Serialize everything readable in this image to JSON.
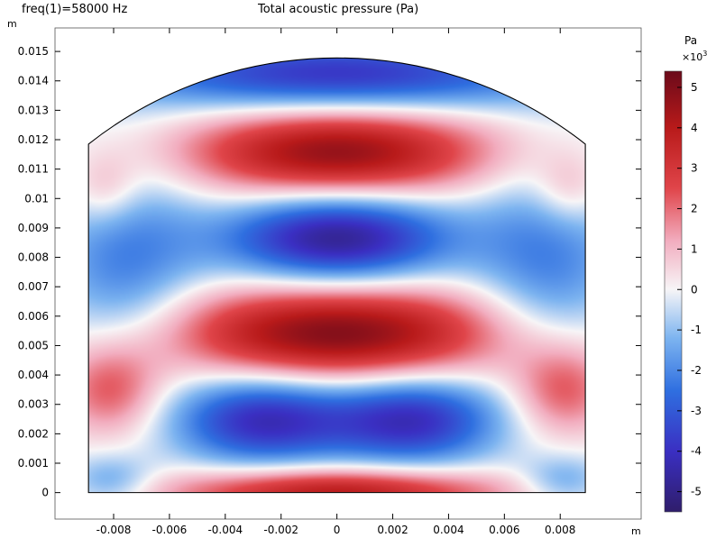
{
  "header": {
    "parameter_label": "freq(1)=58000 Hz",
    "plot_title": "Total acoustic pressure (Pa)"
  },
  "chart_data": {
    "type": "heatmap",
    "title": "Total acoustic pressure (Pa)",
    "subtitle": "freq(1)=58000 Hz",
    "xlabel": "m",
    "ylabel": "m",
    "xlim": [
      -0.0101,
      0.0109
    ],
    "ylim": [
      -0.0009,
      0.0158
    ],
    "x_ticks": [
      -0.008,
      -0.006,
      -0.004,
      -0.002,
      0,
      0.002,
      0.004,
      0.006,
      0.008
    ],
    "x_tick_labels": [
      "-0.008",
      "-0.006",
      "-0.004",
      "-0.002",
      "0",
      "0.002",
      "0.004",
      "0.006",
      "0.008"
    ],
    "y_ticks": [
      0,
      0.001,
      0.002,
      0.003,
      0.004,
      0.005,
      0.006,
      0.007,
      0.008,
      0.009,
      0.01,
      0.011,
      0.012,
      0.013,
      0.014,
      0.015
    ],
    "y_tick_labels": [
      "0",
      "0.001",
      "0.002",
      "0.003",
      "0.004",
      "0.005",
      "0.006",
      "0.007",
      "0.008",
      "0.009",
      "0.01",
      "0.011",
      "0.012",
      "0.013",
      "0.014",
      "0.015"
    ],
    "domain": {
      "x_range": [
        -0.0089,
        0.0089
      ],
      "side_height": 0.01185,
      "apex_height": 0.01478
    },
    "pressure_features": [
      {
        "label": "lobe",
        "x": 0,
        "y": 0.01155,
        "value": 4800,
        "sx": 0.0039,
        "sy": 0.0011
      },
      {
        "label": "lobe",
        "x": 0,
        "y": 0.00865,
        "value": -5000,
        "sx": 0.0029,
        "sy": 0.0011
      },
      {
        "label": "lobe",
        "x": 0,
        "y": 0.0054,
        "value": 5100,
        "sx": 0.0044,
        "sy": 0.0012
      },
      {
        "label": "lobe",
        "x": -0.0027,
        "y": 0.0025,
        "value": -4200,
        "sx": 0.0022,
        "sy": 0.0011
      },
      {
        "label": "lobe",
        "x": 0.0027,
        "y": 0.0025,
        "value": -4200,
        "sx": 0.0022,
        "sy": 0.0011
      },
      {
        "label": "lobe",
        "x": 0,
        "y": 0.0,
        "value": 4200,
        "sx": 0.0042,
        "sy": 0.0006
      },
      {
        "label": "lobe",
        "x": 0,
        "y": 0.0142,
        "value": -4000,
        "sx": 0.0058,
        "sy": 0.0009
      },
      {
        "label": "lobe",
        "x": -0.0076,
        "y": 0.0078,
        "value": -2200,
        "sx": 0.0019,
        "sy": 0.0024
      },
      {
        "label": "lobe",
        "x": 0.0076,
        "y": 0.0078,
        "value": -2200,
        "sx": 0.0019,
        "sy": 0.0024
      },
      {
        "label": "lobe",
        "x": -0.0081,
        "y": 0.0035,
        "value": 2500,
        "sx": 0.0013,
        "sy": 0.0011
      },
      {
        "label": "lobe",
        "x": 0.0081,
        "y": 0.0035,
        "value": 2500,
        "sx": 0.0013,
        "sy": 0.0011
      },
      {
        "label": "lobe",
        "x": -0.0083,
        "y": 0.0103,
        "value": 1400,
        "sx": 0.0009,
        "sy": 0.0009
      },
      {
        "label": "lobe",
        "x": 0.0083,
        "y": 0.0103,
        "value": 1400,
        "sx": 0.0009,
        "sy": 0.0009
      },
      {
        "label": "lobe",
        "x": -0.0081,
        "y": 0.0004,
        "value": -1600,
        "sx": 0.0011,
        "sy": 0.0006
      },
      {
        "label": "lobe",
        "x": 0.0081,
        "y": 0.0004,
        "value": -1600,
        "sx": 0.0011,
        "sy": 0.0006
      }
    ],
    "colorbar": {
      "unit": "Pa",
      "multiplier_base": "×10",
      "multiplier_exp": "3",
      "min": -5.5,
      "max": 5.4,
      "ticks": [
        -5,
        -4,
        -3,
        -2,
        -1,
        0,
        1,
        2,
        3,
        4,
        5
      ],
      "tick_labels": [
        "-5",
        "-4",
        "-3",
        "-2",
        "-1",
        "0",
        "1",
        "2",
        "3",
        "4",
        "5"
      ],
      "color_stops": [
        {
          "value": -5.5,
          "color": "#2f1d6b"
        },
        {
          "value": -4.0,
          "color": "#3a2fc2"
        },
        {
          "value": -2.5,
          "color": "#2f6fe0"
        },
        {
          "value": -1.2,
          "color": "#7db4f0"
        },
        {
          "value": 0.0,
          "color": "#f7f5f7"
        },
        {
          "value": 1.2,
          "color": "#f2adbf"
        },
        {
          "value": 2.5,
          "color": "#e0454a"
        },
        {
          "value": 4.0,
          "color": "#b81a1a"
        },
        {
          "value": 5.4,
          "color": "#6b0a1a"
        }
      ]
    }
  }
}
